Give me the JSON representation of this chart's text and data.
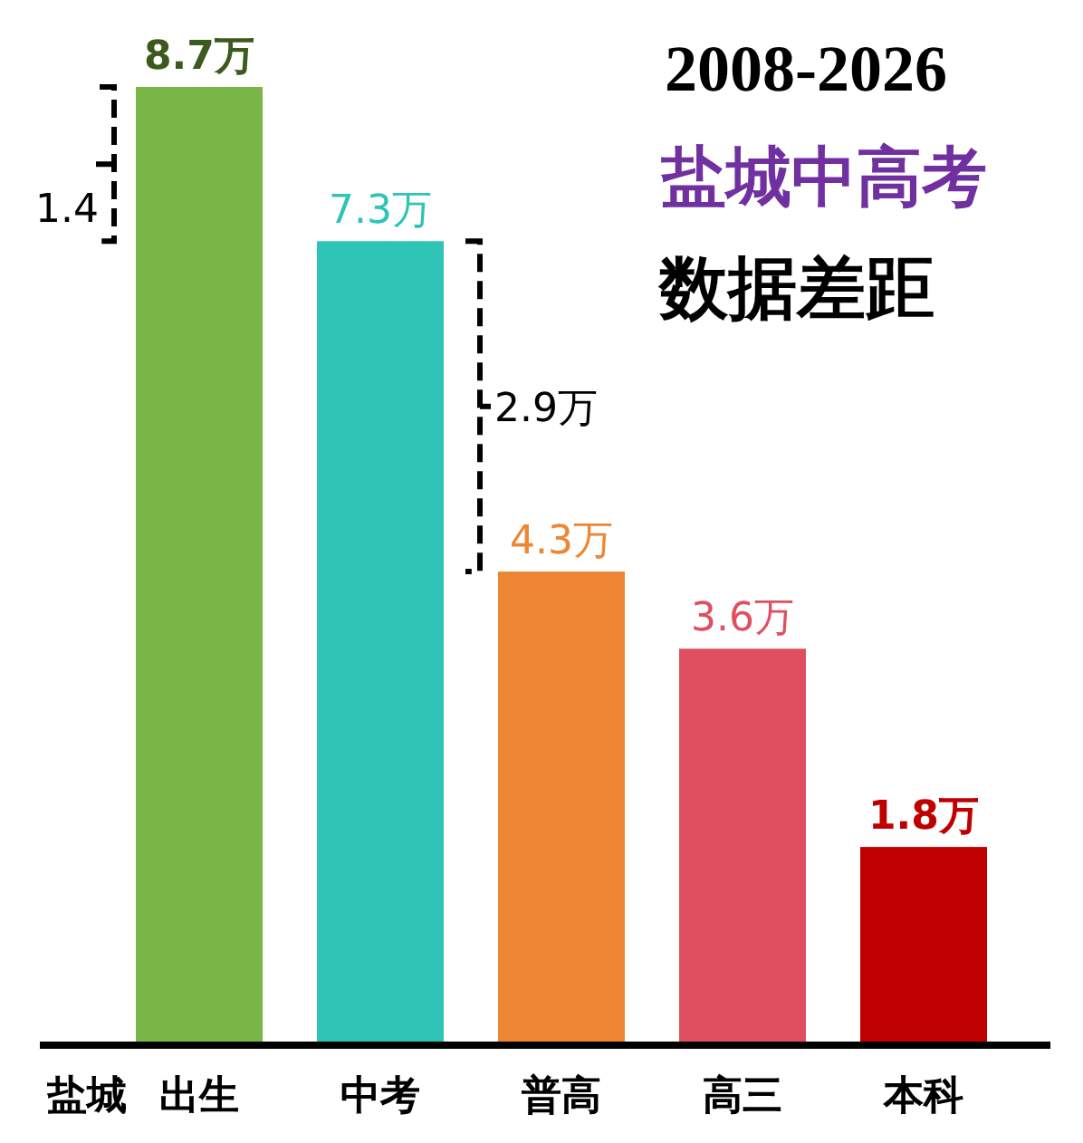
{
  "chart_data": {
    "type": "bar",
    "title": "2008-2026",
    "subtitle": "盐城中高考",
    "categories": [
      "出生",
      "中考",
      "普高",
      "高三",
      "本科"
    ],
    "values": [
      8.7,
      7.3,
      4.3,
      3.6,
      1.8
    ],
    "colors": [
      "#7ab648",
      "#2ec4b6",
      "#ed8633",
      "#e04f5f",
      "#c00000"
    ],
    "value_labels": [
      "8.7万",
      "7.3万",
      "4.3万",
      "3.6万",
      "1.8万"
    ],
    "annotations": [
      "数据差距",
      "盐城",
      "1.4",
      "2.9万"
    ]
  }
}
